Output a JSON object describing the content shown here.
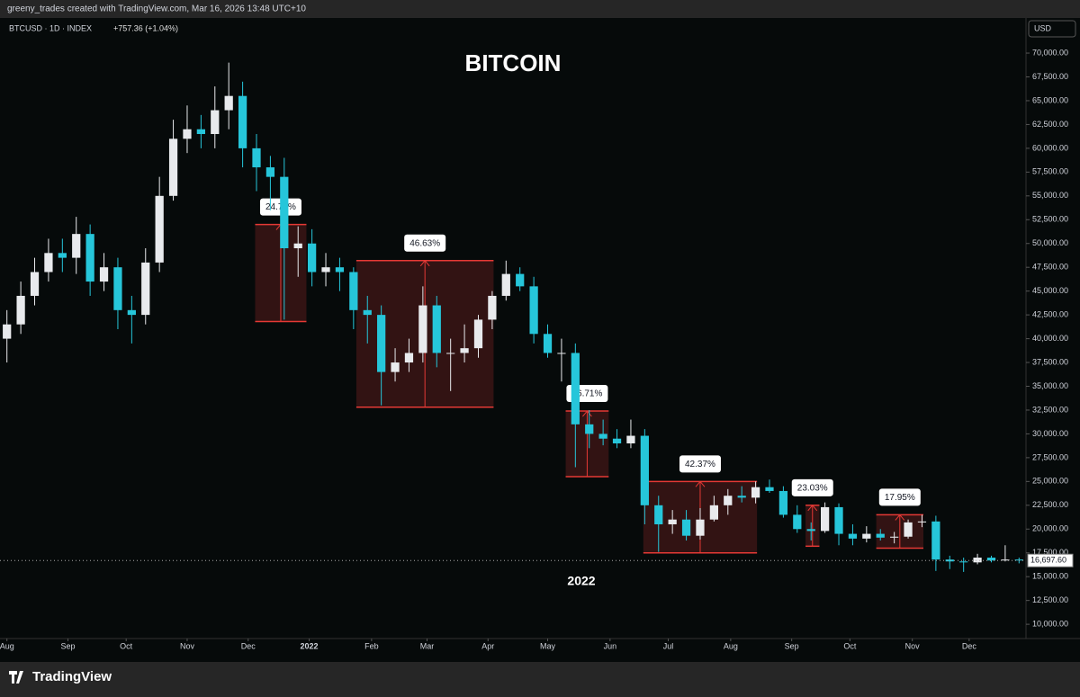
{
  "header": {
    "credit": "greeny_trades created with TradingView.com, Mar 16, 2026 13:48 UTC+10",
    "symbol": "BTCUSD · 1D · INDEX",
    "change": "+757.36 (+1.04%)",
    "currency": "USD"
  },
  "footer": {
    "brand": "TradingView"
  },
  "chart_data": {
    "type": "candlestick",
    "title": "BITCOIN",
    "annotation": "2022",
    "up_color": "#e8eaed",
    "down_color": "#26c6da",
    "box_color": "#e53935",
    "categories": [
      null,
      null,
      null,
      null,
      null,
      null,
      null,
      null,
      null,
      null,
      null,
      null,
      null,
      null,
      null,
      null,
      null,
      null,
      null,
      null,
      null,
      null,
      null,
      null,
      null,
      null,
      null,
      null,
      null,
      null,
      null,
      null,
      null,
      null,
      null,
      null,
      null,
      null,
      null,
      null,
      null,
      null,
      null,
      null,
      null,
      null,
      null,
      null,
      null,
      null,
      null,
      null,
      null,
      null,
      null,
      null,
      null,
      null,
      null,
      null,
      null,
      null,
      null,
      null,
      null,
      null,
      null,
      null,
      null,
      null,
      null,
      null,
      null,
      null
    ],
    "open": [
      40000,
      41500,
      44500,
      47000,
      49000,
      48500,
      51000,
      46000,
      47500,
      43000,
      42500,
      48000,
      55000,
      61000,
      62000,
      61500,
      64000,
      65500,
      60000,
      58000,
      57000,
      49500,
      50000,
      47000,
      47500,
      47000,
      43000,
      42500,
      36500,
      37500,
      38500,
      43500,
      38500,
      38500,
      39000,
      42000,
      44500,
      46800,
      45500,
      40500,
      38500,
      38500,
      31000,
      30000,
      29500,
      29000,
      29800,
      22500,
      20500,
      21000,
      19300,
      21000,
      22500,
      23500,
      23300,
      24400,
      24000,
      21500,
      20000,
      19800,
      22300,
      19500,
      19000,
      19500,
      19100,
      19200,
      20700,
      20800,
      16800,
      16600,
      16500,
      17000,
      16700,
      16800
    ],
    "high": [
      43000,
      46000,
      48500,
      50500,
      50500,
      52800,
      52000,
      49000,
      48500,
      44500,
      49500,
      57000,
      63000,
      64500,
      63500,
      66500,
      69000,
      67000,
      61500,
      59200,
      59000,
      51800,
      51500,
      49000,
      48500,
      47500,
      44500,
      43500,
      39000,
      40000,
      45500,
      44500,
      40000,
      41500,
      42500,
      45000,
      48200,
      47500,
      46500,
      41500,
      40000,
      39500,
      32500,
      31500,
      30500,
      31500,
      30500,
      23500,
      22000,
      22000,
      22200,
      23500,
      24200,
      24500,
      25000,
      25200,
      24500,
      22500,
      20700,
      22800,
      22700,
      20500,
      20300,
      20000,
      19700,
      21000,
      21500,
      21400,
      17200,
      17000,
      17400,
      17200,
      18300,
      17000
    ],
    "low": [
      37500,
      40500,
      43500,
      46000,
      47000,
      46800,
      44500,
      45000,
      41000,
      39500,
      41500,
      47000,
      54500,
      59500,
      60000,
      60000,
      62000,
      58000,
      55500,
      53500,
      42000,
      46500,
      45500,
      45500,
      45000,
      41000,
      39500,
      33000,
      35500,
      36500,
      37500,
      37000,
      34500,
      37500,
      38000,
      41000,
      44000,
      45000,
      39500,
      38000,
      35500,
      26500,
      28500,
      28800,
      28500,
      28500,
      20500,
      17600,
      19500,
      18800,
      18900,
      20800,
      21500,
      22800,
      22700,
      23800,
      21200,
      19600,
      18800,
      19600,
      18300,
      18300,
      18600,
      18800,
      18500,
      19000,
      20200,
      15600,
      15800,
      15500,
      16300,
      16500,
      16600,
      16400
    ],
    "close": [
      41500,
      44500,
      47000,
      49000,
      48500,
      51000,
      46000,
      47500,
      43000,
      42500,
      48000,
      55000,
      61000,
      62000,
      61500,
      64000,
      65500,
      60000,
      58000,
      57000,
      49500,
      50000,
      47000,
      47500,
      47000,
      43000,
      42500,
      36500,
      37500,
      38500,
      43500,
      38500,
      38500,
      39000,
      42000,
      44500,
      46800,
      45500,
      40500,
      38500,
      38500,
      31000,
      30000,
      29500,
      29000,
      29800,
      22500,
      20500,
      21000,
      19300,
      21000,
      22500,
      23500,
      23300,
      24400,
      24000,
      21500,
      20000,
      19800,
      22300,
      19500,
      19000,
      19500,
      19100,
      19200,
      20700,
      20800,
      16800,
      16600,
      16500,
      17000,
      16700,
      16800,
      16700
    ],
    "boxes": [
      {
        "x": [
          17.9,
          21.6
        ],
        "y": [
          41800,
          52000
        ],
        "label": "24.72%"
      },
      {
        "x": [
          25.2,
          35.1
        ],
        "y": [
          32800,
          48200
        ],
        "label": "46.63%"
      },
      {
        "x": [
          40.3,
          43.4
        ],
        "y": [
          25500,
          32400
        ],
        "label": "26.71%"
      },
      {
        "x": [
          45.9,
          54.1
        ],
        "y": [
          17500,
          25000
        ],
        "label": "42.37%"
      },
      {
        "x": [
          57.6,
          58.6
        ],
        "y": [
          18200,
          22500
        ],
        "label": "23.03%"
      },
      {
        "x": [
          62.7,
          66.1
        ],
        "y": [
          18000,
          21500
        ],
        "label": "17.95%"
      }
    ],
    "last_price": {
      "value": 16697.6,
      "label": "16,697.60"
    },
    "xlim": [
      -0.5,
      73.5
    ],
    "xticks": [
      {
        "value": 0,
        "label": "Aug"
      },
      {
        "value": 4.4,
        "label": "Sep"
      },
      {
        "value": 8.6,
        "label": "Oct"
      },
      {
        "value": 13.0,
        "label": "Nov"
      },
      {
        "value": 17.4,
        "label": "Dec"
      },
      {
        "value": 21.8,
        "label": "2022"
      },
      {
        "value": 26.3,
        "label": "Feb"
      },
      {
        "value": 30.3,
        "label": "Mar"
      },
      {
        "value": 34.7,
        "label": "Apr"
      },
      {
        "value": 39.0,
        "label": "May"
      },
      {
        "value": 43.5,
        "label": "Jun"
      },
      {
        "value": 47.7,
        "label": "Jul"
      },
      {
        "value": 52.2,
        "label": "Aug"
      },
      {
        "value": 56.6,
        "label": "Sep"
      },
      {
        "value": 60.8,
        "label": "Oct"
      },
      {
        "value": 65.3,
        "label": "Nov"
      },
      {
        "value": 69.4,
        "label": "Dec"
      }
    ],
    "ylim": [
      8500,
      73500
    ],
    "yticks": [
      {
        "value": 10000,
        "label": "10,000.00"
      },
      {
        "value": 12500,
        "label": "12,500.00"
      },
      {
        "value": 15000,
        "label": "15,000.00"
      },
      {
        "value": 17500,
        "label": "17,500.00"
      },
      {
        "value": 20000,
        "label": "20,000.00"
      },
      {
        "value": 22500,
        "label": "22,500.00"
      },
      {
        "value": 25000,
        "label": "25,000.00"
      },
      {
        "value": 27500,
        "label": "27,500.00"
      },
      {
        "value": 30000,
        "label": "30,000.00"
      },
      {
        "value": 32500,
        "label": "32,500.00"
      },
      {
        "value": 35000,
        "label": "35,000.00"
      },
      {
        "value": 37500,
        "label": "37,500.00"
      },
      {
        "value": 40000,
        "label": "40,000.00"
      },
      {
        "value": 42500,
        "label": "42,500.00"
      },
      {
        "value": 45000,
        "label": "45,000.00"
      },
      {
        "value": 47500,
        "label": "47,500.00"
      },
      {
        "value": 50000,
        "label": "50,000.00"
      },
      {
        "value": 52500,
        "label": "52,500.00"
      },
      {
        "value": 55000,
        "label": "55,000.00"
      },
      {
        "value": 57500,
        "label": "57,500.00"
      },
      {
        "value": 60000,
        "label": "60,000.00"
      },
      {
        "value": 62500,
        "label": "62,500.00"
      },
      {
        "value": 65000,
        "label": "65,000.00"
      },
      {
        "value": 67500,
        "label": "67,500.00"
      },
      {
        "value": 70000,
        "label": "70,000.00"
      }
    ],
    "grid": false
  }
}
